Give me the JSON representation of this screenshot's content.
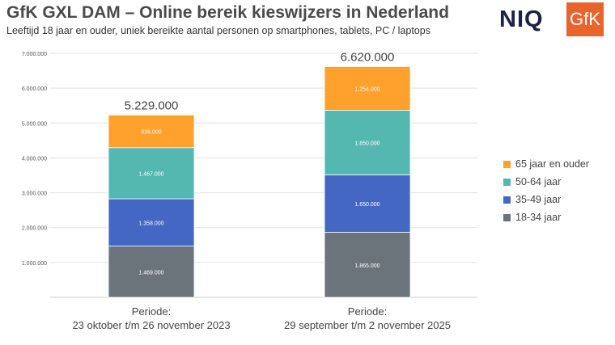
{
  "header": {
    "title": "GfK GXL DAM – Online bereik kieswijzers in Nederland",
    "subtitle": "Leeftijd 18 jaar en ouder, uniek bereikte aantal personen op smartphones, tablets, PC / laptops",
    "logos": [
      "NIQ",
      "GfK"
    ]
  },
  "chart_data": {
    "type": "bar",
    "stacked": true,
    "categories": [
      [
        "Periode:",
        "23 oktober t/m 26 november 2023"
      ],
      [
        "Periode:",
        "29 september t/m 2 november 2025"
      ]
    ],
    "series": [
      {
        "name": "18-34 jaar",
        "color": "#6b747a",
        "values": [
          1469000,
          1865000
        ],
        "labels": [
          "1.469.000",
          "1.865.000"
        ]
      },
      {
        "name": "35-49 jaar",
        "color": "#4467c4",
        "values": [
          1358000,
          1650000
        ],
        "labels": [
          "1.358.000",
          "1.650.000"
        ]
      },
      {
        "name": "50-64 jaar",
        "color": "#55b8b0",
        "values": [
          1467000,
          1850000
        ],
        "labels": [
          "1.467.000",
          "1.850.000"
        ]
      },
      {
        "name": "65 jaar en ouder",
        "color": "#ffa12c",
        "values": [
          936000,
          1254000
        ],
        "labels": [
          "936.000",
          "1.254.000"
        ]
      }
    ],
    "totals": [
      "5.229.000",
      "6.620.000"
    ],
    "ylim": [
      0,
      7000000
    ],
    "yticks": [
      "1.000.000",
      "2.000.000",
      "3.000.000",
      "4.000.000",
      "5.000.000",
      "6.000.000",
      "7.000.000"
    ],
    "grid": true,
    "legend": "right"
  }
}
